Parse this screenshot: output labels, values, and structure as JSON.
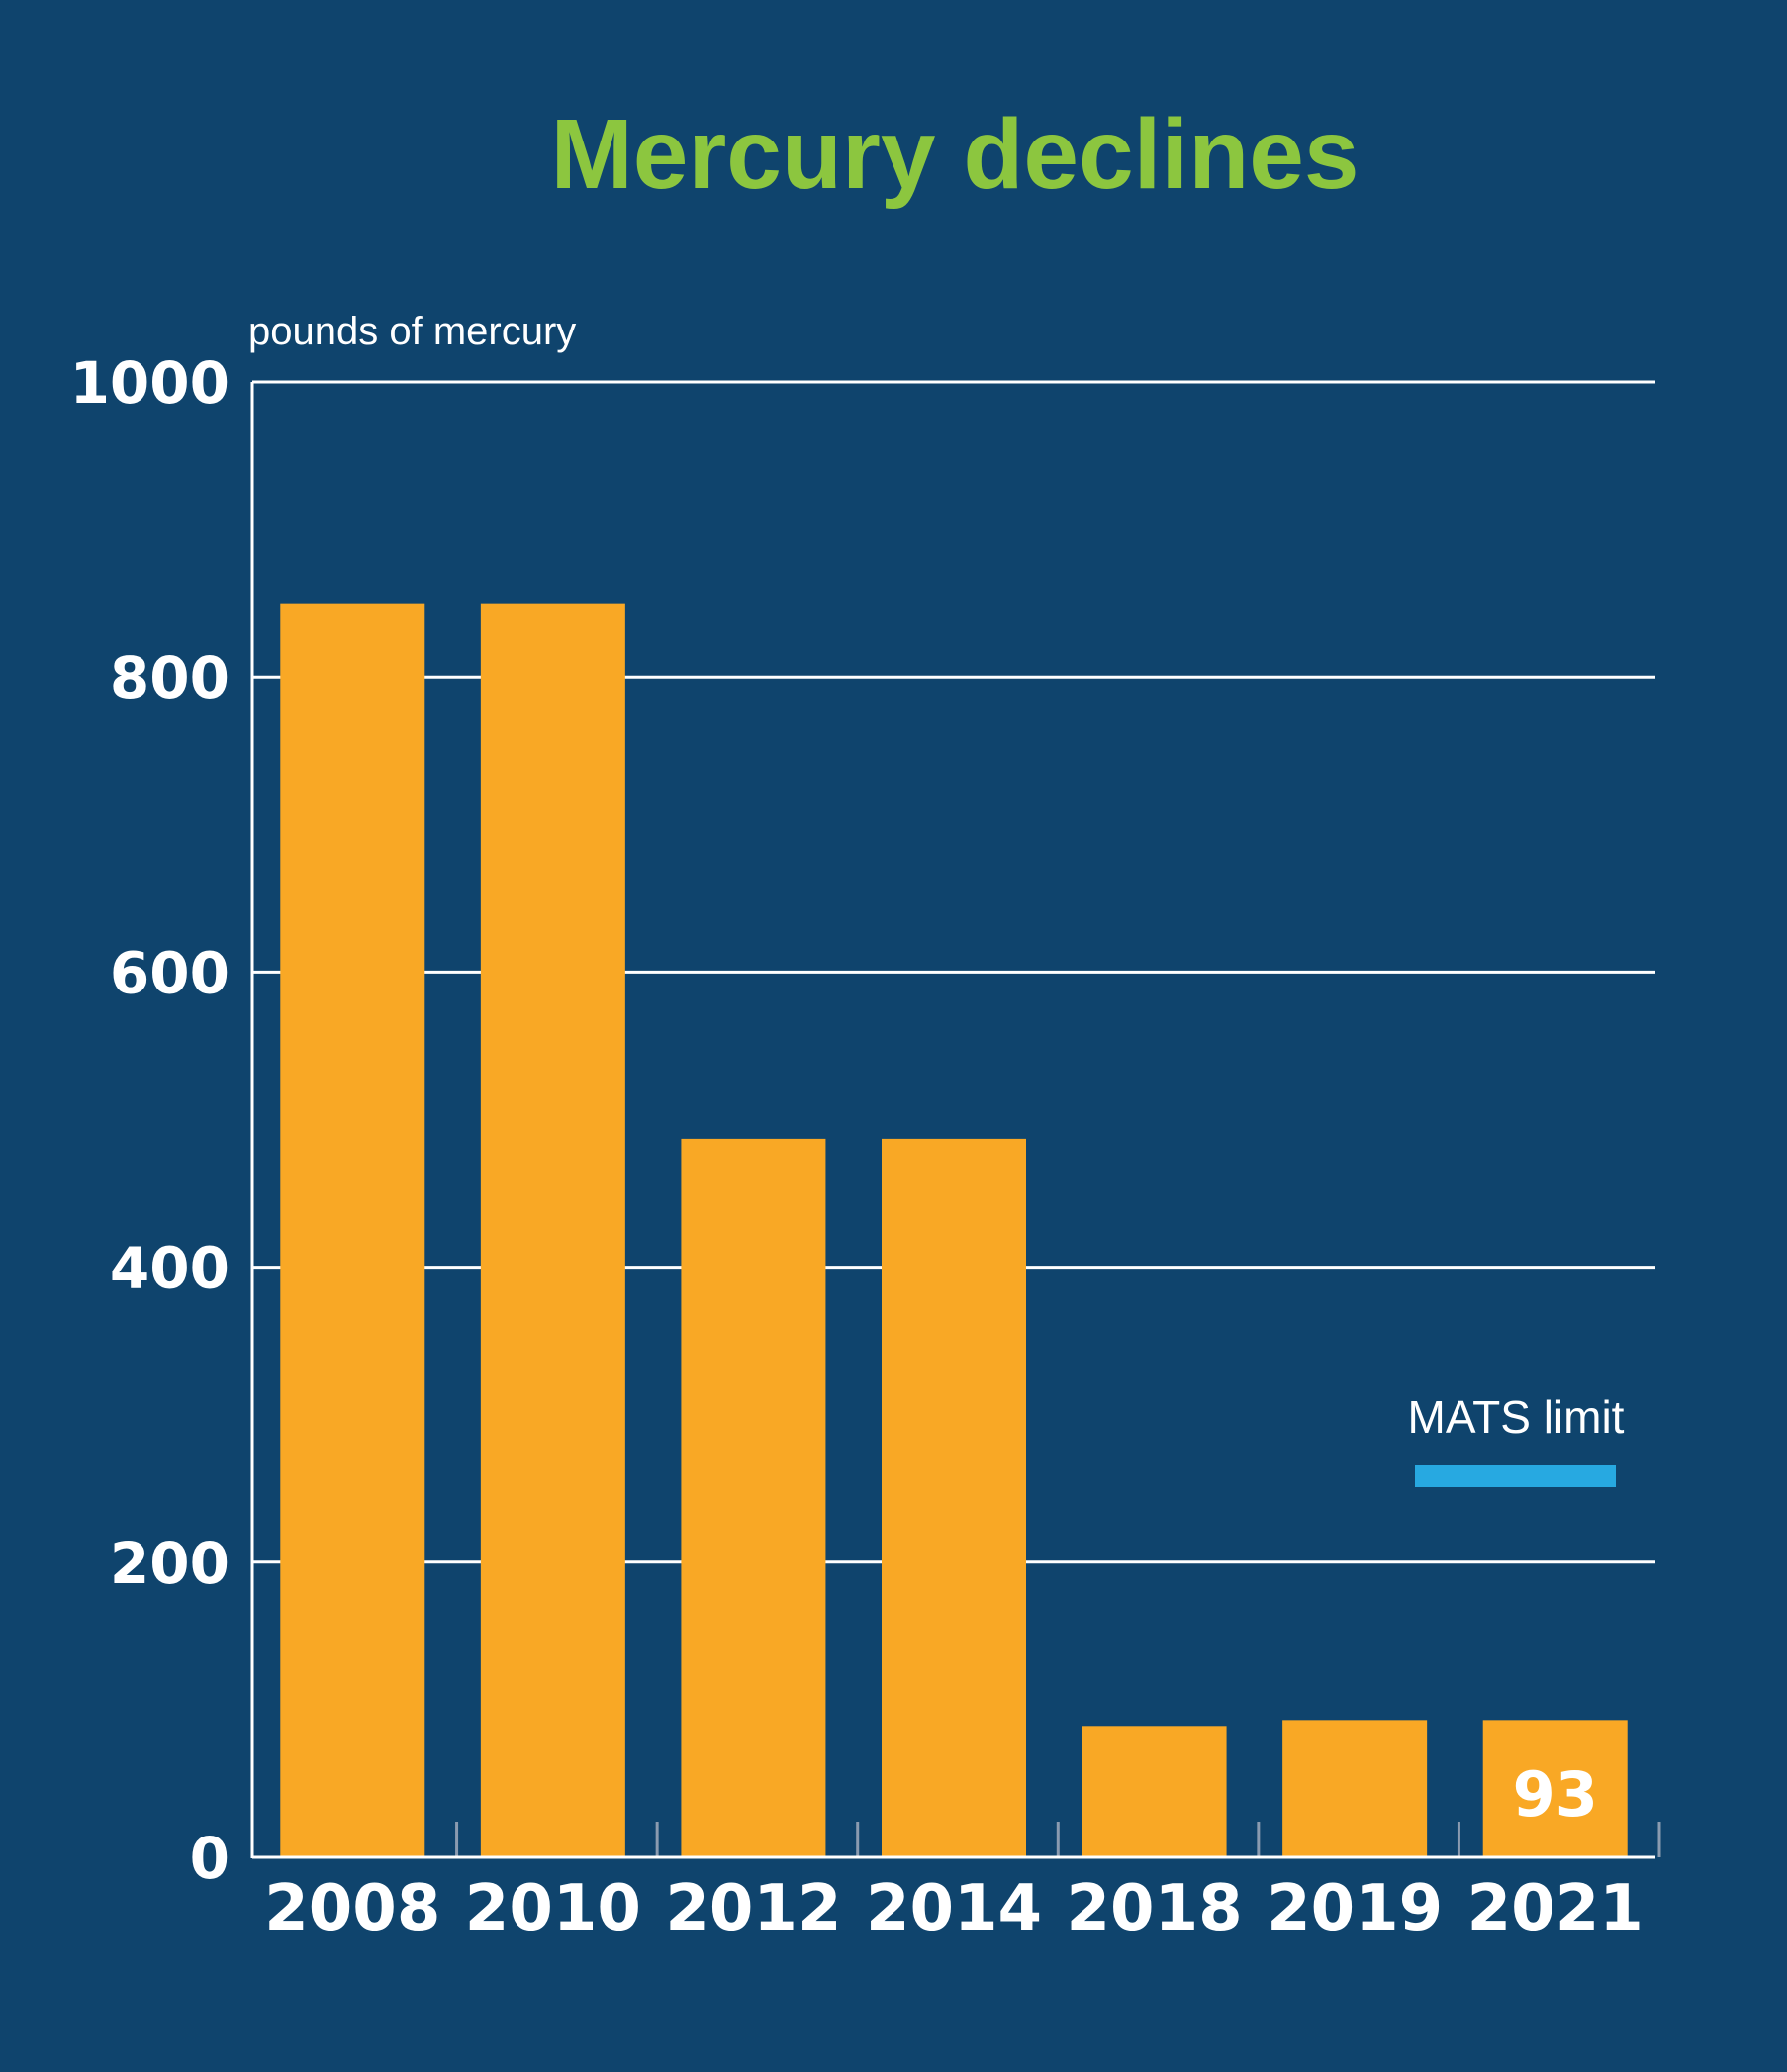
{
  "chart_data": {
    "type": "bar",
    "title": "Mercury declines",
    "ylabel": "pounds of mercury",
    "xlabel": "",
    "categories": [
      "2008",
      "2010",
      "2012",
      "2014",
      "2018",
      "2019",
      "2021"
    ],
    "values": [
      850,
      850,
      487,
      487,
      89,
      93,
      93
    ],
    "ylim": [
      0,
      1000
    ],
    "yticks": [
      0,
      200,
      400,
      600,
      800,
      1000
    ],
    "ytick_labels": [
      "0",
      "200",
      "400",
      "600",
      "800",
      "1000"
    ],
    "grid": true,
    "data_labels": [
      {
        "category": "2021",
        "text": "93"
      }
    ],
    "legend": {
      "placement": "right",
      "entries": [
        {
          "label": "MATS limit",
          "color": "#27a9e1"
        }
      ]
    },
    "colors": {
      "background": "#0f446d",
      "bar": "#f9a825",
      "title": "#8cc63f",
      "gridline": "#ffffff",
      "text": "#ffffff",
      "tick_mark": "#8a9bb0"
    }
  }
}
